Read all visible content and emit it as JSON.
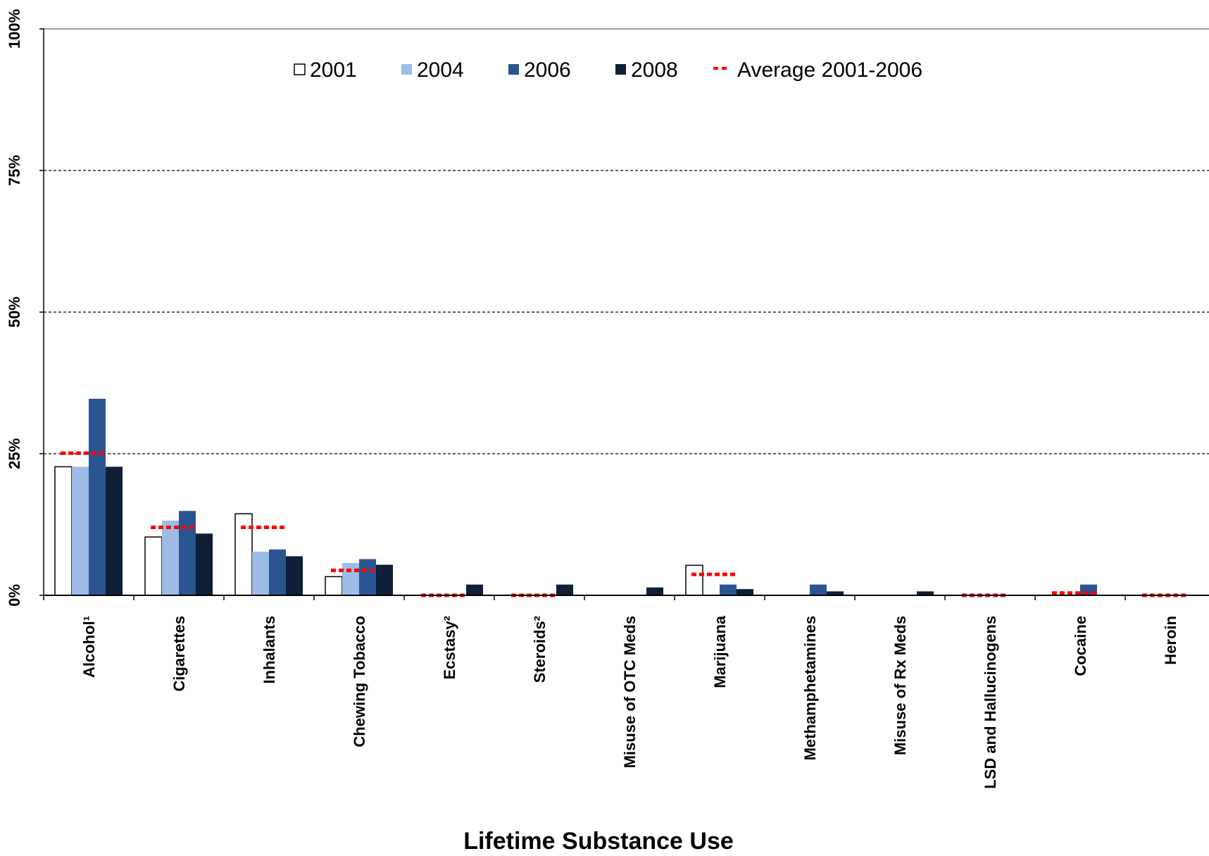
{
  "chart_data": {
    "type": "bar",
    "title": "",
    "xlabel": "Lifetime Substance Use",
    "ylabel": "",
    "ylim": [
      0,
      100
    ],
    "yticks": [
      0,
      25,
      50,
      75,
      100
    ],
    "ytick_labels": [
      "0%",
      "25%",
      "50%",
      "75%",
      "100%"
    ],
    "gridlines": [
      25,
      50,
      75,
      100
    ],
    "grid": true,
    "legend_position": "top",
    "categories": [
      "Alcohol¹",
      "Cigarettes",
      "Inhalants",
      "Chewing Tobacco",
      "Ecstasy²",
      "Steroids²",
      "Misuse of OTC Meds",
      "Marijuana",
      "Methamphetamines",
      "Misuse of Rx Meds",
      "LSD and Hallucinogens",
      "Cocaine",
      "Heroin"
    ],
    "series": [
      {
        "name": "2001",
        "color": "#ffffff",
        "values": [
          22.7,
          10.3,
          14.4,
          3.3,
          null,
          null,
          null,
          5.3,
          null,
          null,
          null,
          null,
          null
        ]
      },
      {
        "name": "2004",
        "color": "#9dbde6",
        "values": [
          22.7,
          13.2,
          7.7,
          5.7,
          null,
          null,
          null,
          null,
          null,
          null,
          null,
          null,
          null
        ]
      },
      {
        "name": "2006",
        "color": "#2a5590",
        "values": [
          34.7,
          14.9,
          8.1,
          6.4,
          null,
          null,
          null,
          1.9,
          1.9,
          null,
          null,
          1.9,
          null
        ]
      },
      {
        "name": "2008",
        "color": "#0f1f37",
        "values": [
          22.7,
          10.9,
          6.9,
          5.4,
          1.9,
          1.9,
          1.4,
          1.1,
          0.7,
          0.7,
          null,
          null,
          null
        ]
      }
    ],
    "average": {
      "name": "Average 2001-2006",
      "color": "#ff0000",
      "values": [
        25.1,
        12.0,
        12.0,
        4.4,
        0.0,
        0.0,
        null,
        3.7,
        null,
        null,
        0.0,
        0.4,
        0.0
      ]
    }
  }
}
